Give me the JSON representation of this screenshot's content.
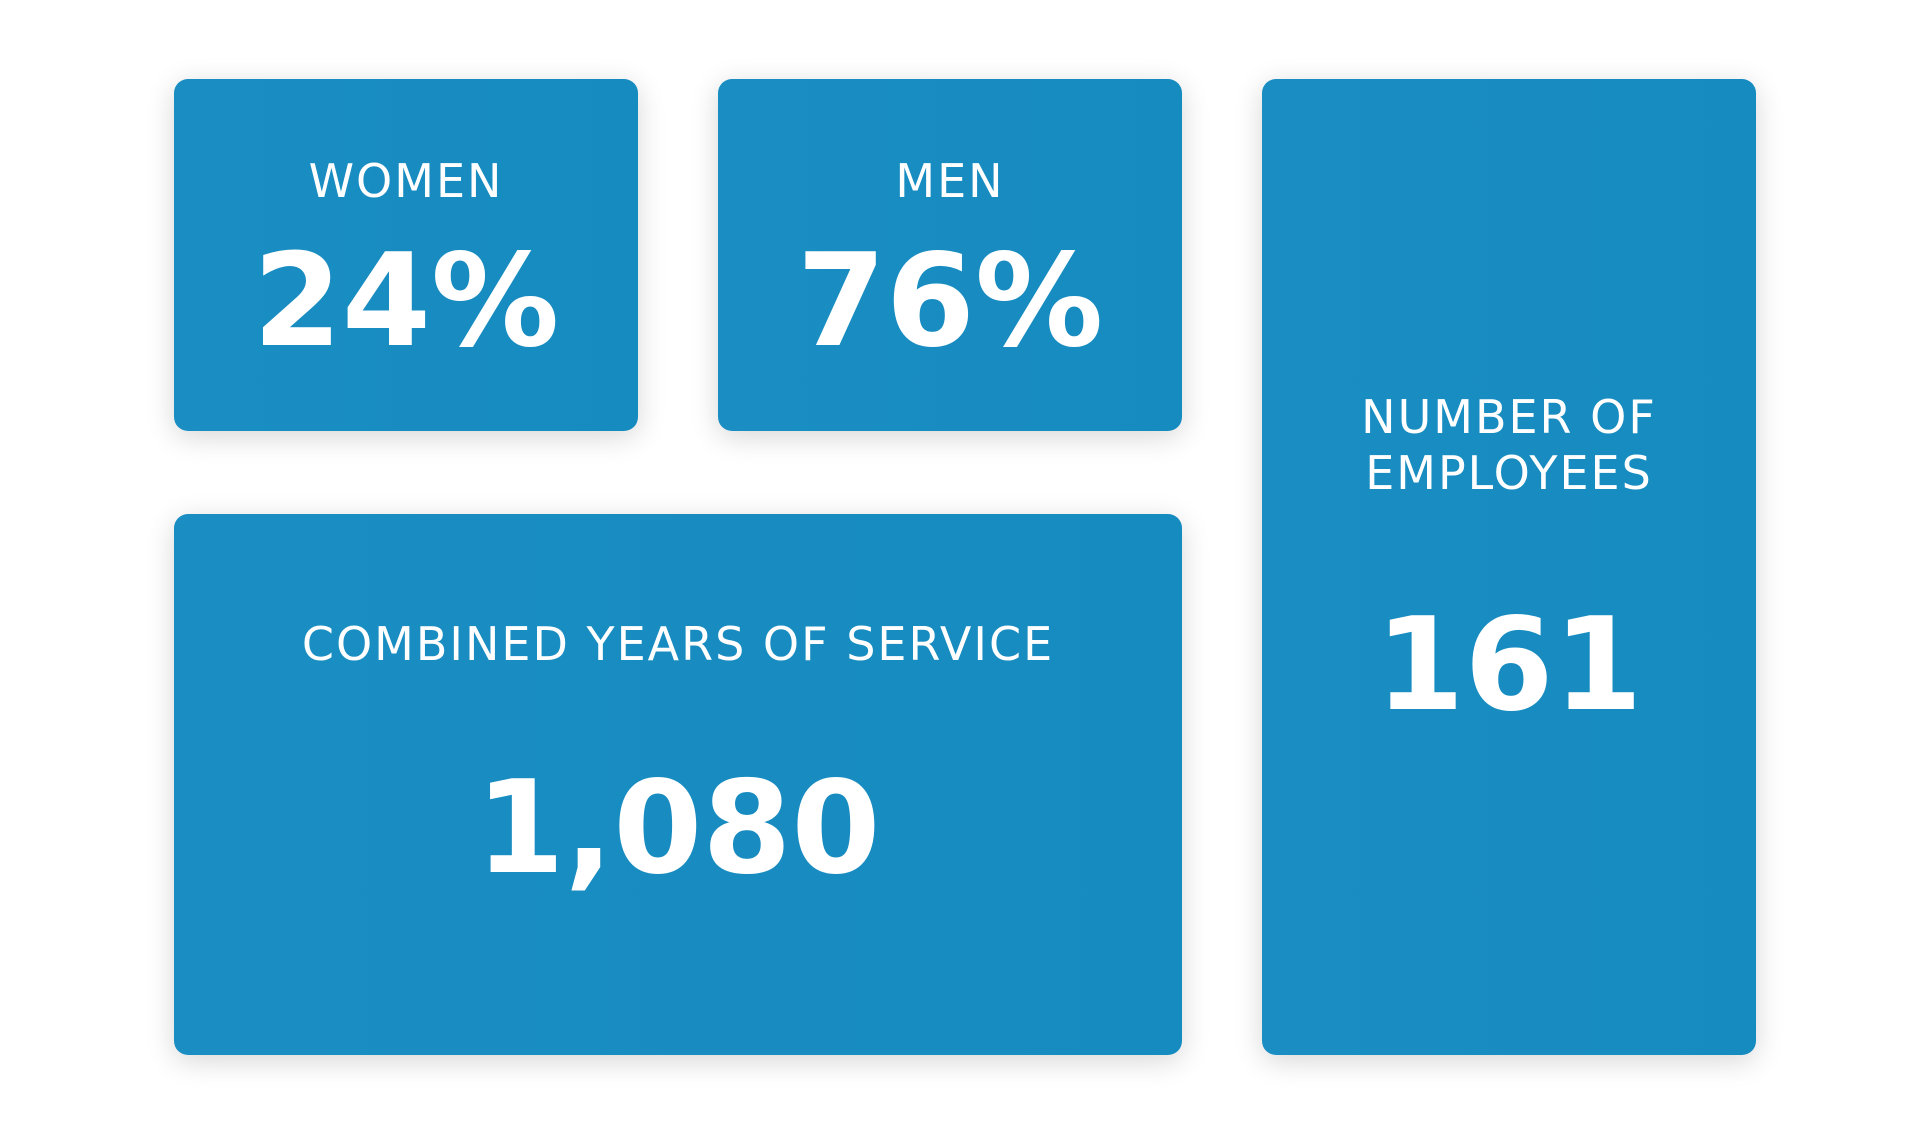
{
  "cards": {
    "women": {
      "label": "WOMEN",
      "value": "24%"
    },
    "men": {
      "label": "MEN",
      "value": "76%"
    },
    "years": {
      "label": "COMBINED YEARS OF SERVICE",
      "value": "1,080"
    },
    "employees": {
      "label_line1": "NUMBER OF",
      "label_line2": "EMPLOYEES",
      "value": "161"
    }
  },
  "colors": {
    "card_background": "#1a8ec2",
    "text": "#ffffff",
    "page_background": "#ffffff"
  }
}
